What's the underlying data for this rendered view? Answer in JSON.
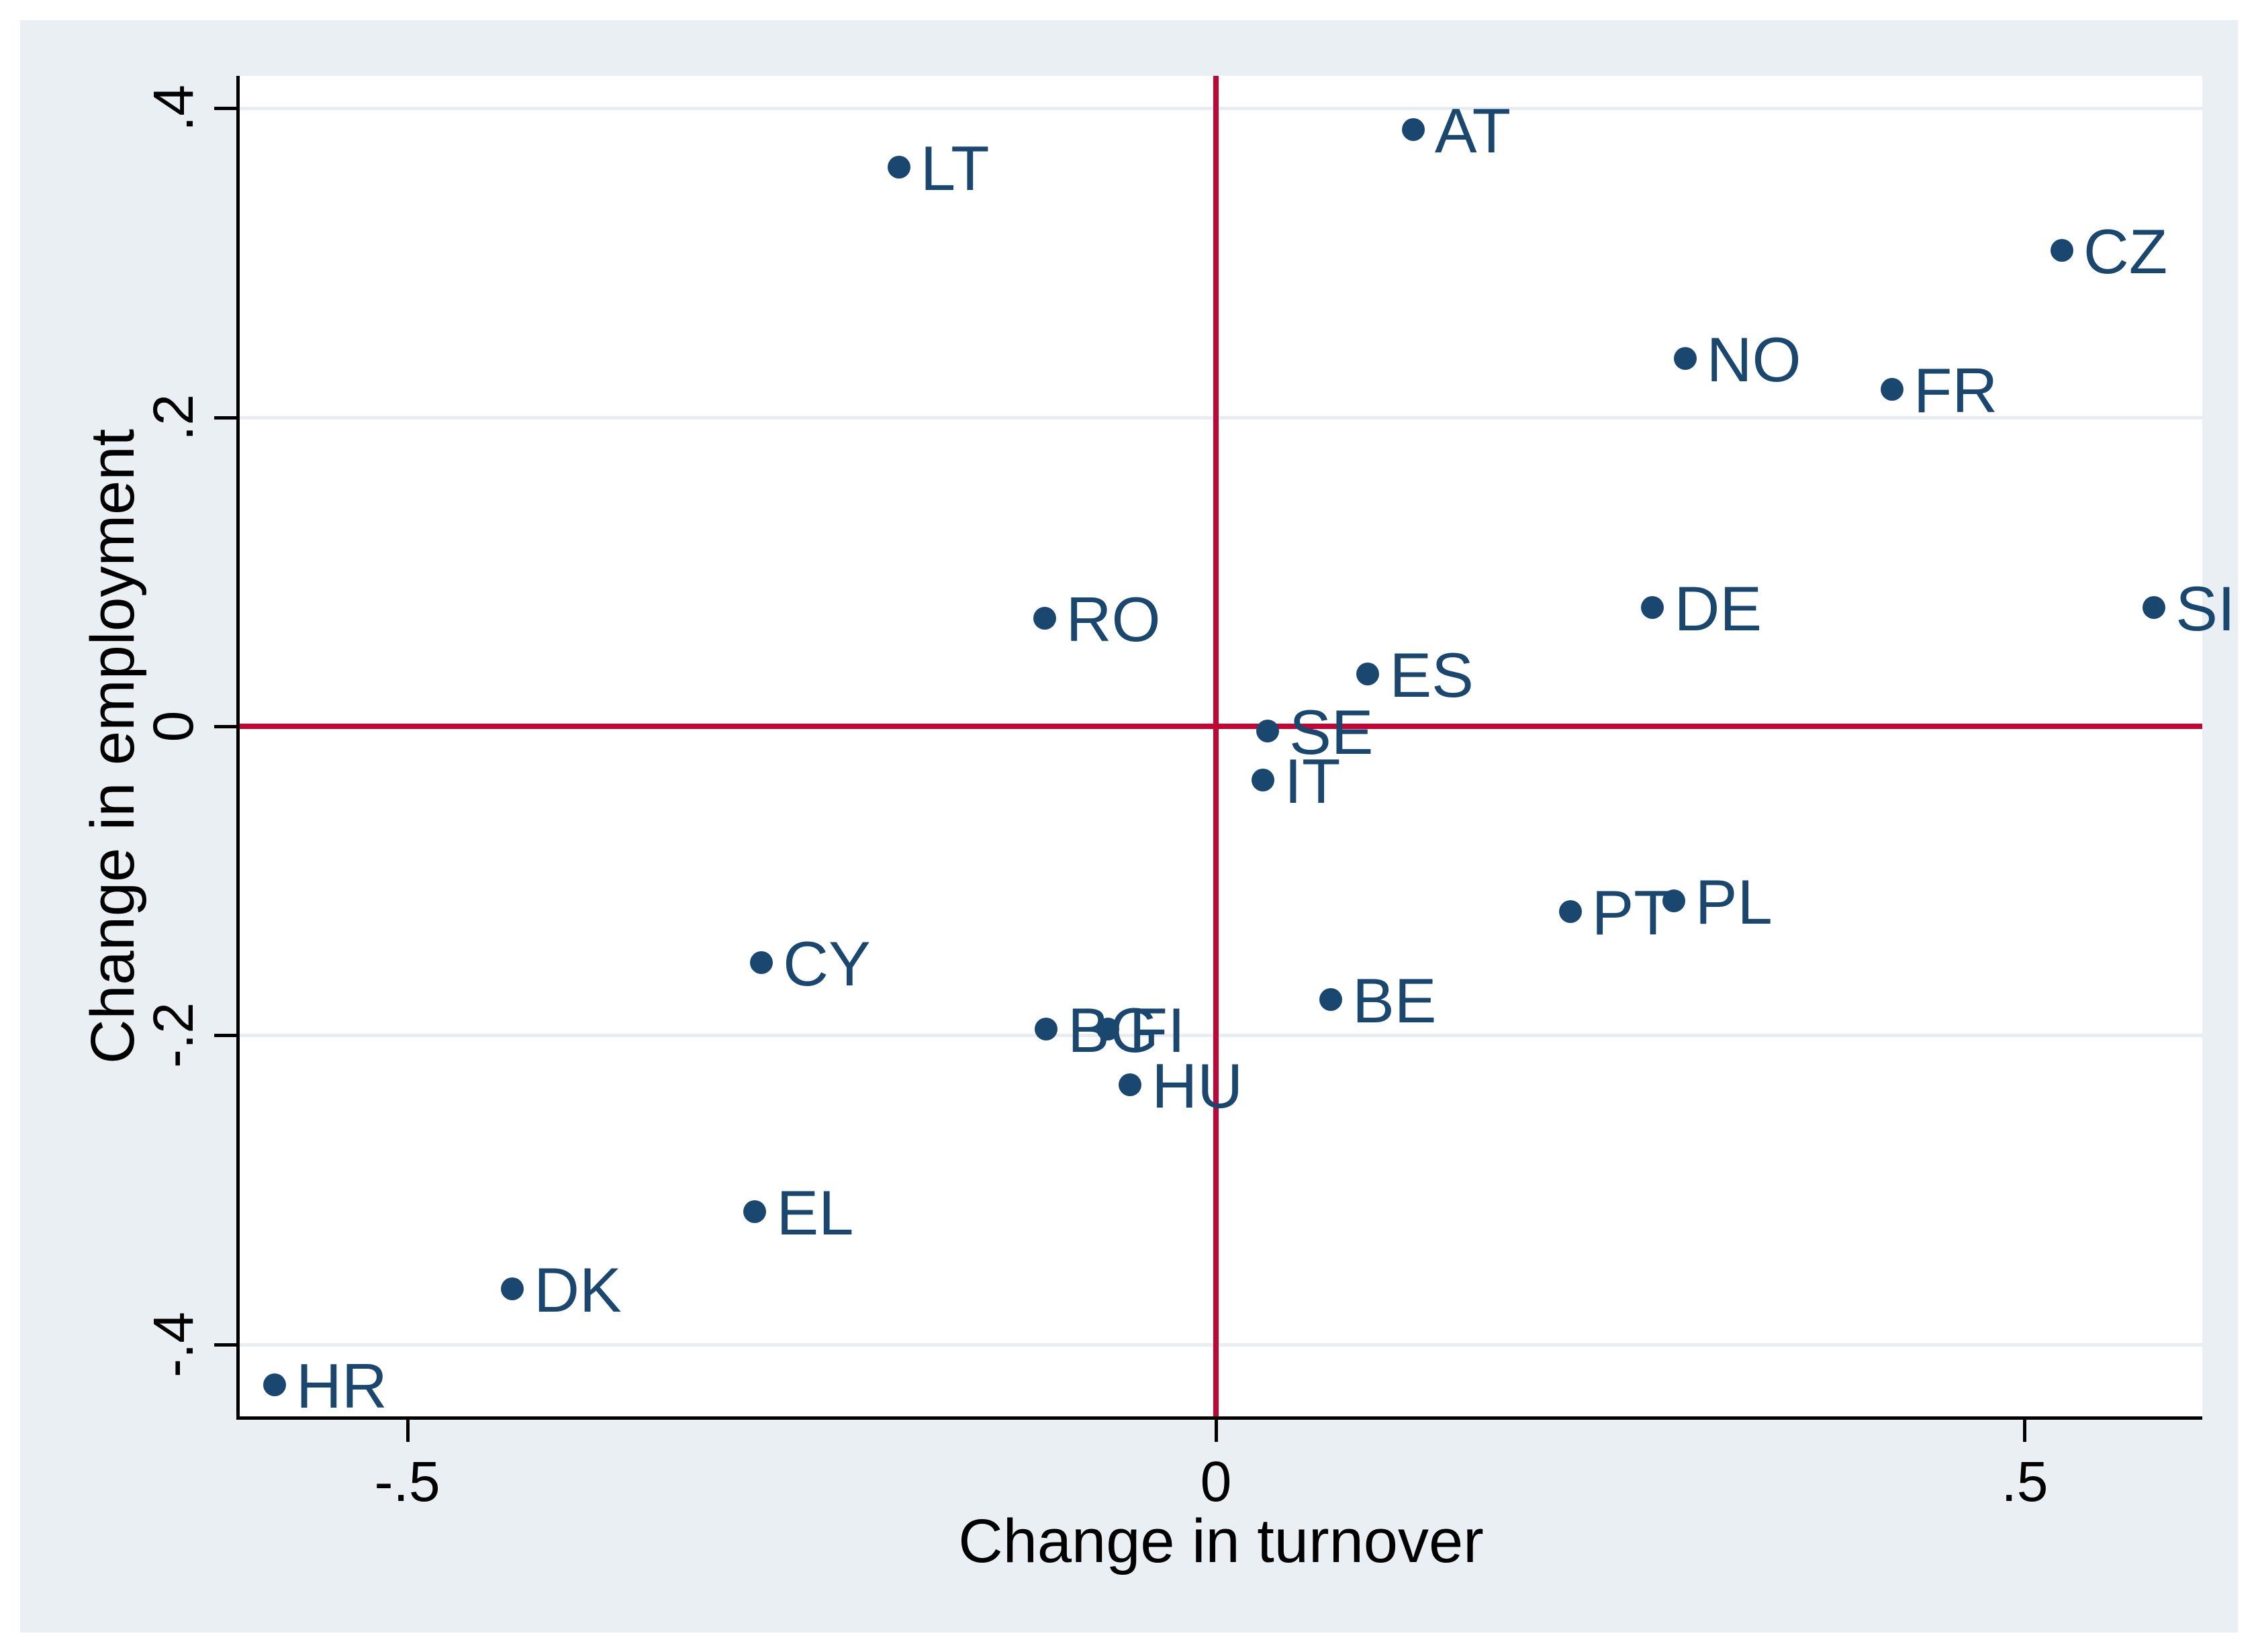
{
  "figure": {
    "background_color": "#e9eff2",
    "plot_background_color": "#ffffff",
    "grid_color": "#e7edf1",
    "axis_color": "#000000",
    "marker_color": "#1a476f",
    "marker_label_color": "#1a476f",
    "refline_color": "#c10534"
  },
  "chart_data": {
    "type": "scatter",
    "title": "",
    "xlabel": "Change in turnover",
    "ylabel": "Change in employment",
    "xlim": [
      -0.6036,
      0.6098
    ],
    "ylim": [
      -0.4466,
      0.4209
    ],
    "grid": "horizontal",
    "legend": "none",
    "x_ticks": [
      {
        "value": -0.5,
        "label": "-.5"
      },
      {
        "value": 0,
        "label": "0"
      },
      {
        "value": 0.5,
        "label": ".5"
      }
    ],
    "y_ticks": [
      {
        "value": 0.4,
        "label": ".4"
      },
      {
        "value": 0.2,
        "label": ".2"
      },
      {
        "value": 0,
        "label": "0"
      },
      {
        "value": -0.2,
        "label": "-.2"
      },
      {
        "value": -0.4,
        "label": "-.4"
      }
    ],
    "ref_lines": {
      "xline": 0,
      "yline": 0
    },
    "points": [
      {
        "label": "AT",
        "x": 0.122,
        "y": 0.386
      },
      {
        "label": "LT",
        "x": -0.196,
        "y": 0.362
      },
      {
        "label": "CZ",
        "x": 0.523,
        "y": 0.308
      },
      {
        "label": "NO",
        "x": 0.29,
        "y": 0.238
      },
      {
        "label": "FR",
        "x": 0.418,
        "y": 0.218
      },
      {
        "label": "SI",
        "x": 0.58,
        "y": 0.077
      },
      {
        "label": "DE",
        "x": 0.27,
        "y": 0.077
      },
      {
        "label": "RO",
        "x": -0.106,
        "y": 0.07
      },
      {
        "label": "ES",
        "x": 0.094,
        "y": 0.034
      },
      {
        "label": "SE",
        "x": 0.032,
        "y": -0.003
      },
      {
        "label": "IT",
        "x": 0.029,
        "y": -0.035
      },
      {
        "label": "PL",
        "x": 0.283,
        "y": -0.113
      },
      {
        "label": "PT",
        "x": 0.219,
        "y": -0.12
      },
      {
        "label": "CY",
        "x": -0.281,
        "y": -0.153
      },
      {
        "label": "BE",
        "x": 0.071,
        "y": -0.177
      },
      {
        "label": "BG",
        "x": -0.105,
        "y": -0.196
      },
      {
        "label": "FI",
        "x": -0.067,
        "y": -0.196
      },
      {
        "label": "HU",
        "x": -0.053,
        "y": -0.232
      },
      {
        "label": "EL",
        "x": -0.285,
        "y": -0.314
      },
      {
        "label": "DK",
        "x": -0.435,
        "y": -0.364
      },
      {
        "label": "HR",
        "x": -0.582,
        "y": -0.426
      }
    ]
  }
}
